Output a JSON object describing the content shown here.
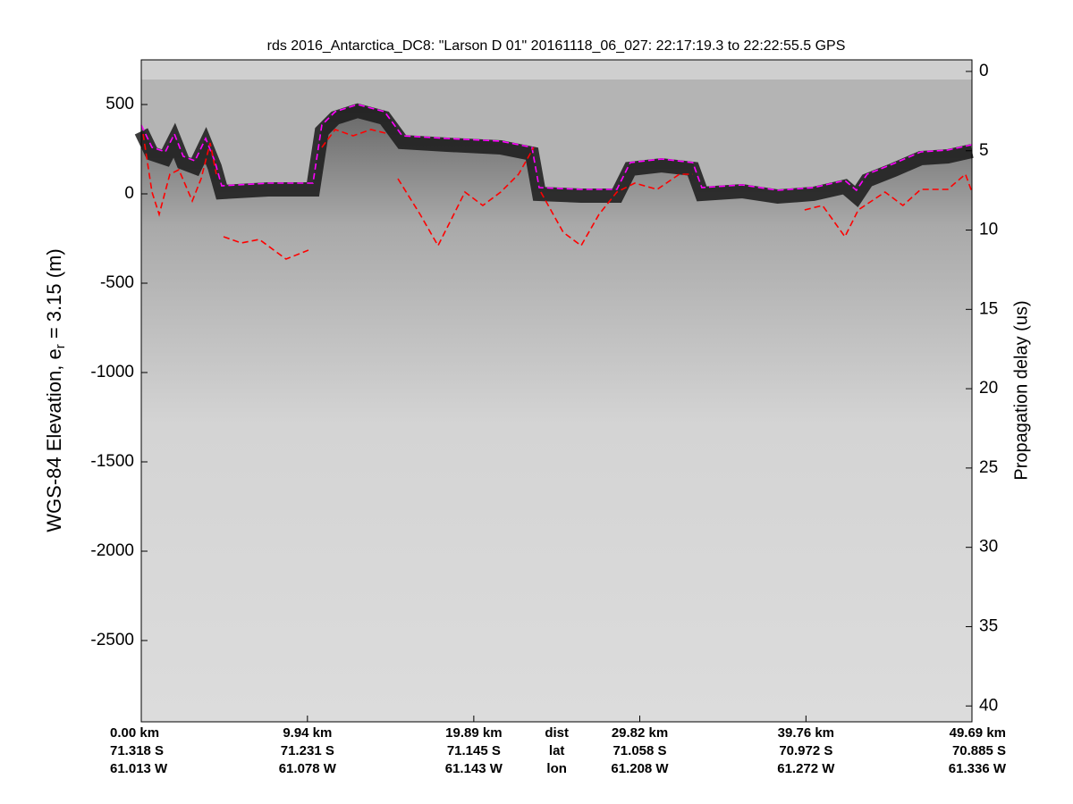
{
  "chart_data": {
    "type": "line",
    "title": "rds 2016_Antarctica_DC8: \"Larson D 01\"  20161118_06_027: 22:17:19.3 to 22:22:55.5 GPS",
    "ylabel": {
      "text": "WGS-84 Elevation, e",
      "subscript": "r",
      "rest": " = 3.15 (m)"
    },
    "y2label": "Propagation delay (us)",
    "xlim": [
      0,
      49.69
    ],
    "xticks": [
      {
        "value": 0,
        "label": "0.00 km"
      },
      {
        "value": 9.94,
        "label": "9.94 km"
      },
      {
        "value": 19.89,
        "label": "19.89 km"
      },
      {
        "value": 29.82,
        "label": "29.82 km"
      },
      {
        "value": 39.76,
        "label": "39.76 km"
      },
      {
        "value": 49.69,
        "label": "49.69 km"
      }
    ],
    "lat_labels": [
      "71.318 S",
      "71.231 S",
      "71.145 S",
      "71.058 S",
      "70.972 S",
      "70.885 S"
    ],
    "lon_labels": [
      "61.013 W",
      "61.078 W",
      "61.143 W",
      "61.208 W",
      "61.272 W",
      "61.336 W"
    ],
    "row_labels": [
      "dist",
      "lat",
      "lon"
    ],
    "ylim": [
      -2955,
      750
    ],
    "yticks": [
      -2500,
      -2000,
      -1500,
      -1000,
      -500,
      0,
      500
    ],
    "y2lim": [
      -0.73,
      41.0
    ],
    "y2ticks": [
      0,
      5,
      10,
      15,
      20,
      25,
      30,
      35,
      40
    ],
    "series": [
      {
        "color": "#ff00ff",
        "x": [
          0,
          0.64,
          1.44,
          1.98,
          2.51,
          3.21,
          3.85,
          4.39,
          4.81,
          7.59,
          10.27,
          10.8,
          11.6,
          12.94,
          14.55,
          15.61,
          18.29,
          21.5,
          23.37,
          23.8,
          26.31,
          28.45,
          29.25,
          31.12,
          32.99,
          33.53,
          35.94,
          38.07,
          40.21,
          42.09,
          42.78,
          43.42,
          45.03,
          46.63,
          48.24,
          49.69
        ],
        "values": [
          385,
          260,
          235,
          335,
          210,
          185,
          310,
          185,
          45,
          60,
          60,
          385,
          460,
          500,
          460,
          325,
          310,
          295,
          260,
          35,
          25,
          25,
          175,
          195,
          175,
          35,
          50,
          20,
          35,
          75,
          20,
          110,
          170,
          235,
          245,
          275
        ]
      },
      {
        "color": "#ff0000",
        "x": [
          0.11,
          0.64,
          1.07,
          1.71,
          2.25,
          3.05,
          3.58,
          4.12,
          4.49,
          null,
          4.92,
          5.99,
          7.06,
          8.66,
          10,
          null,
          10.8,
          11.6,
          12.67,
          13.74,
          14.81,
          null,
          15.35,
          16.68,
          17.75,
          18.56,
          19.36,
          20.43,
          21.5,
          22.57,
          23.48,
          null,
          23.9,
          25.24,
          26.31,
          27.38,
          28.45,
          29.52,
          30.86,
          32.19,
          32.99,
          null,
          39.68,
          40.75,
          42.09,
          42.89,
          44.49,
          45.56,
          46.63,
          48.24,
          49.3,
          49.69
        ],
        "values": [
          335,
          10,
          -115,
          110,
          135,
          -40,
          85,
          285,
          110,
          null,
          -240,
          -275,
          -255,
          -365,
          -315,
          null,
          260,
          360,
          325,
          360,
          335,
          null,
          85,
          -115,
          -290,
          -140,
          10,
          -65,
          10,
          110,
          260,
          null,
          10,
          -215,
          -290,
          -115,
          10,
          60,
          25,
          110,
          110,
          null,
          -90,
          -65,
          -240,
          -90,
          10,
          -65,
          25,
          25,
          110,
          10
        ]
      }
    ]
  }
}
